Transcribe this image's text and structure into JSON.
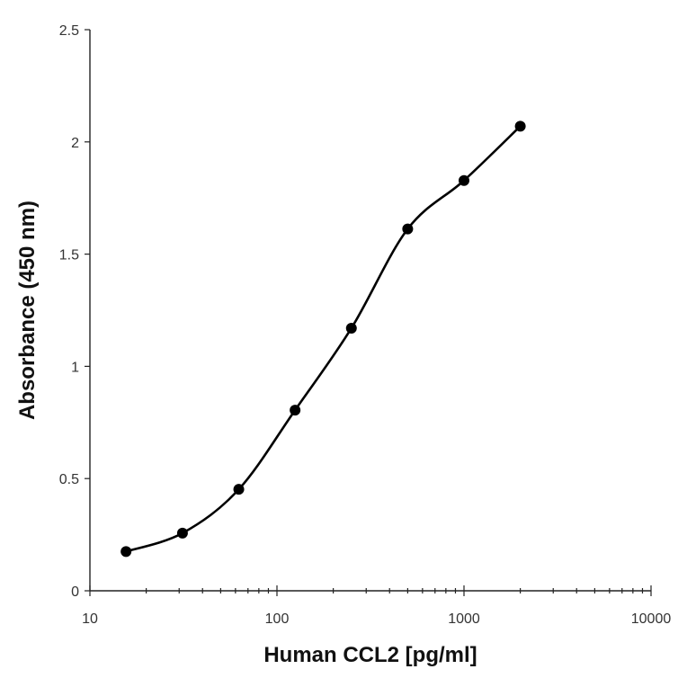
{
  "chart_data": {
    "type": "line",
    "title": "",
    "xlabel": "Human CCL2 [pg/ml]",
    "ylabel": "Absorbance (450 nm)",
    "xscale": "log",
    "xlim": [
      10,
      10000
    ],
    "ylim": [
      0,
      2.5
    ],
    "x_ticks": [
      "10",
      "100",
      "1000",
      "10000"
    ],
    "y_ticks": [
      "0",
      "0.5",
      "1",
      "1.5",
      "2",
      "2.5"
    ],
    "grid": false,
    "legend": "none",
    "series": [
      {
        "x": [
          15.6,
          31.25,
          62.5,
          125,
          250,
          500,
          1000,
          2000
        ],
        "y": [
          0.175,
          0.257,
          0.452,
          0.805,
          1.17,
          1.612,
          1.828,
          2.07
        ],
        "color": "#000000",
        "marker": "circle",
        "smooth": true
      }
    ]
  }
}
